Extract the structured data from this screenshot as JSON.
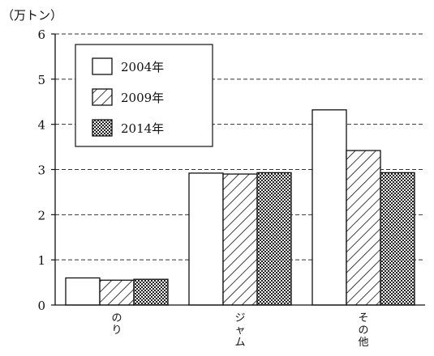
{
  "chart_data": {
    "type": "bar",
    "unit": "（万トン）",
    "categories": [
      "のり",
      "ジャム",
      "その他"
    ],
    "series": [
      {
        "name": "2004年",
        "pattern": "white",
        "values": [
          0.6,
          2.92,
          4.32
        ]
      },
      {
        "name": "2009年",
        "pattern": "hatch",
        "values": [
          0.55,
          2.9,
          3.42
        ]
      },
      {
        "name": "2014年",
        "pattern": "dots",
        "values": [
          0.57,
          2.93,
          2.93
        ]
      }
    ],
    "ylim": [
      0,
      6
    ],
    "yticks": [
      "0",
      "1",
      "2",
      "3",
      "4",
      "5",
      "6"
    ],
    "grid": true,
    "legend": "top-left"
  }
}
